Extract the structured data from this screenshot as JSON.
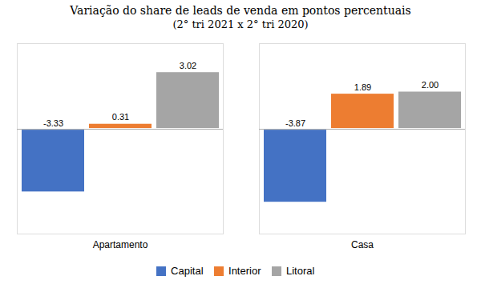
{
  "chart_data": {
    "type": "bar",
    "title": "Variação do share de leads de venda em pontos percentuais",
    "subtitle": "(2° tri 2021 x 2° tri 2020)",
    "categories": [
      "Apartamento",
      "Casa"
    ],
    "series": [
      {
        "name": "Capital",
        "color": "#4472C4",
        "values": [
          -3.33,
          -3.87
        ]
      },
      {
        "name": "Interior",
        "color": "#ED7D31",
        "values": [
          0.31,
          1.89
        ]
      },
      {
        "name": "Litoral",
        "color": "#A5A5A5",
        "values": [
          3.02,
          2.0
        ],
        "value_labels": [
          "3.02",
          "2.00"
        ]
      }
    ],
    "ylim": [
      -5.5,
      4.5
    ],
    "data_labels": true,
    "tick_labels": "x",
    "legend": "bottom"
  }
}
